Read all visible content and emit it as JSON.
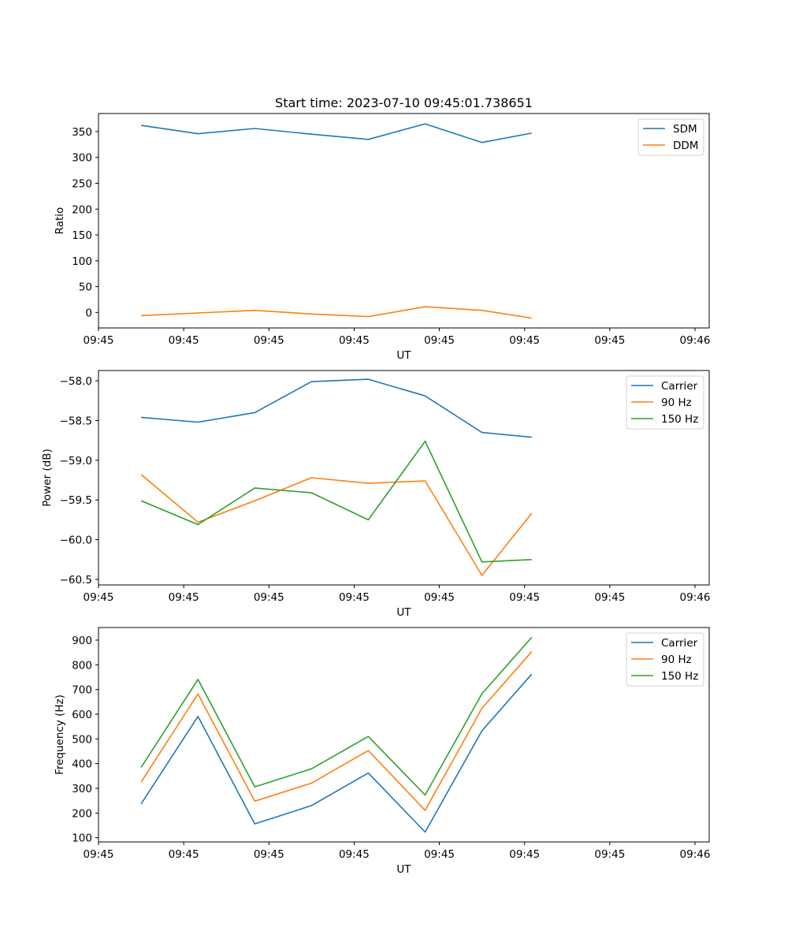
{
  "chart_data": [
    {
      "type": "line",
      "title": "Start time: 2023-07-10 09:45:01.738651",
      "xlabel": "UT",
      "ylabel": "Ratio",
      "xlim": [
        0,
        8.6
      ],
      "ylim": [
        -30,
        385
      ],
      "yticks": [
        0,
        50,
        100,
        150,
        200,
        250,
        300,
        350
      ],
      "ytick_labels": [
        "0",
        "50",
        "100",
        "150",
        "200",
        "250",
        "300",
        "350"
      ],
      "xticks": [
        0,
        1.2,
        2.4,
        3.6,
        4.8,
        6.0,
        7.2,
        8.4
      ],
      "xtick_labels": [
        "09:45",
        "09:45",
        "09:45",
        "09:45",
        "09:45",
        "09:45",
        "09:45",
        "09:46"
      ],
      "x": [
        0.6,
        1.4,
        2.2,
        3.0,
        3.8,
        4.6,
        5.4,
        6.1
      ],
      "series": [
        {
          "name": "SDM",
          "color": "#1f77b4",
          "values": [
            362,
            346,
            356,
            345,
            335,
            365,
            329,
            347
          ]
        },
        {
          "name": "DDM",
          "color": "#ff7f0e",
          "values": [
            -6,
            -1,
            4,
            -3,
            -8,
            11,
            4,
            -11
          ]
        }
      ],
      "legend": "top-right",
      "grid": false
    },
    {
      "type": "line",
      "title": "",
      "xlabel": "UT",
      "ylabel": "Power (dB)",
      "xlim": [
        0,
        8.6
      ],
      "ylim": [
        -60.57,
        -57.87
      ],
      "yticks": [
        -58.0,
        -58.5,
        -59.0,
        -59.5,
        -60.0,
        -60.5
      ],
      "ytick_labels": [
        "−58.0",
        "−58.5",
        "−59.0",
        "−59.5",
        "−60.0",
        "−60.5"
      ],
      "xticks": [
        0,
        1.2,
        2.4,
        3.6,
        4.8,
        6.0,
        7.2,
        8.4
      ],
      "xtick_labels": [
        "09:45",
        "09:45",
        "09:45",
        "09:45",
        "09:45",
        "09:45",
        "09:45",
        "09:46"
      ],
      "x": [
        0.6,
        1.4,
        2.2,
        3.0,
        3.8,
        4.6,
        5.4,
        6.1
      ],
      "series": [
        {
          "name": "Carrier",
          "color": "#1f77b4",
          "values": [
            -58.46,
            -58.52,
            -58.4,
            -58.01,
            -57.98,
            -58.19,
            -58.65,
            -58.71
          ]
        },
        {
          "name": "90 Hz",
          "color": "#ff7f0e",
          "values": [
            -59.18,
            -59.78,
            -59.51,
            -59.22,
            -59.29,
            -59.26,
            -60.45,
            -59.67
          ]
        },
        {
          "name": "150 Hz",
          "color": "#2ca02c",
          "values": [
            -59.51,
            -59.81,
            -59.35,
            -59.41,
            -59.75,
            -58.76,
            -60.28,
            -60.25
          ]
        }
      ],
      "legend": "top-right",
      "grid": false
    },
    {
      "type": "line",
      "title": "",
      "xlabel": "UT",
      "ylabel": "Frequency (Hz)",
      "xlim": [
        0,
        8.6
      ],
      "ylim": [
        83,
        951
      ],
      "yticks": [
        100,
        200,
        300,
        400,
        500,
        600,
        700,
        800,
        900
      ],
      "ytick_labels": [
        "100",
        "200",
        "300",
        "400",
        "500",
        "600",
        "700",
        "800",
        "900"
      ],
      "xticks": [
        0,
        1.2,
        2.4,
        3.6,
        4.8,
        6.0,
        7.2,
        8.4
      ],
      "xtick_labels": [
        "09:45",
        "09:45",
        "09:45",
        "09:45",
        "09:45",
        "09:45",
        "09:45",
        "09:46"
      ],
      "x": [
        0.6,
        1.4,
        2.2,
        3.0,
        3.8,
        4.6,
        5.4,
        6.1
      ],
      "series": [
        {
          "name": "Carrier",
          "color": "#1f77b4",
          "values": [
            237,
            591,
            156,
            230,
            362,
            123,
            533,
            762
          ]
        },
        {
          "name": "90 Hz",
          "color": "#ff7f0e",
          "values": [
            326,
            682,
            248,
            321,
            453,
            211,
            624,
            853
          ]
        },
        {
          "name": "150 Hz",
          "color": "#2ca02c",
          "values": [
            385,
            741,
            306,
            379,
            510,
            273,
            683,
            911
          ]
        }
      ],
      "legend": "top-right",
      "grid": false
    }
  ]
}
